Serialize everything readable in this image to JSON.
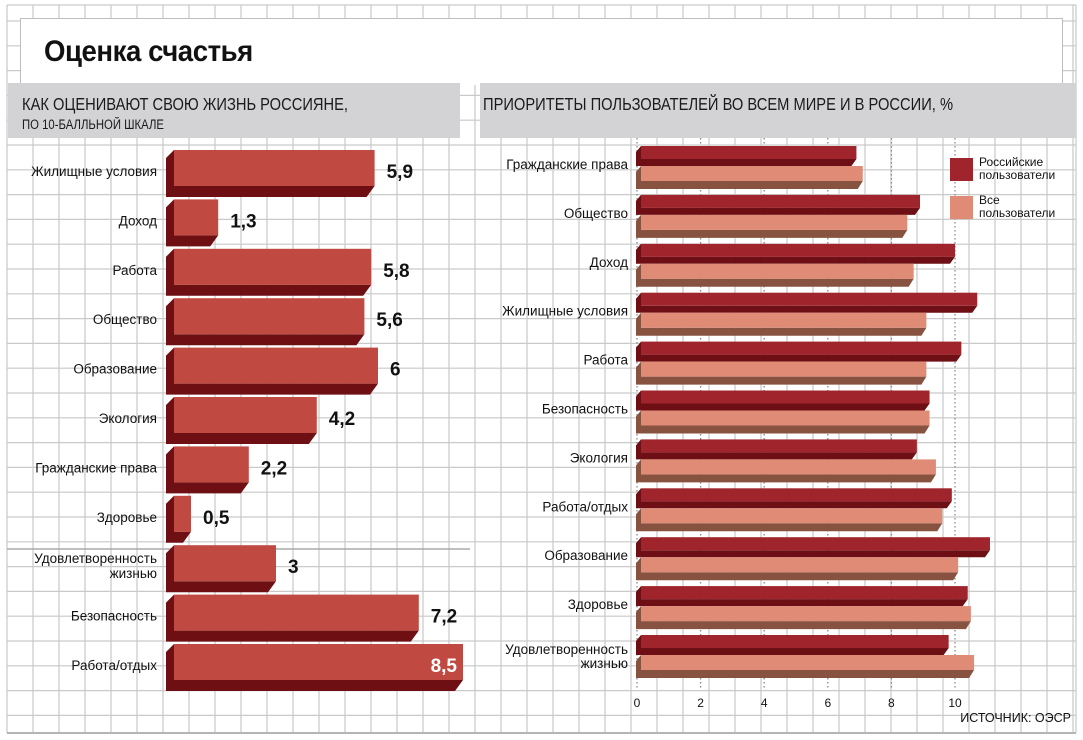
{
  "page": {
    "title": "Оценка счастья",
    "source": "ИСТОЧНИК: ОЭСР"
  },
  "colors": {
    "left_bar_front": "#c04a41",
    "left_bar_shadow": "#6e0f14",
    "russian_front": "#a0242b",
    "russian_shadow": "#6d0f14",
    "all_front": "#e08b76",
    "all_shadow": "#87523f",
    "header_bg": "#d3d3d5",
    "grid": "#c9c9c9"
  },
  "chart_data": [
    {
      "type": "bar",
      "orientation": "horizontal",
      "title": "КАК ОЦЕНИВАЮТ СВОЮ ЖИЗНЬ РОССИЯНЕ,",
      "subtitle": "ПО 10-БАЛЛЬНОЙ ШКАЛЕ",
      "xlabel": "",
      "ylabel": "",
      "xlim": [
        0,
        10
      ],
      "categories": [
        "Жилищные условия",
        "Доход",
        "Работа",
        "Общество",
        "Образование",
        "Экология",
        "Гражданские права",
        "Здоровье",
        "Удовлетворенность жизнью",
        "Безопасность",
        "Работа/отдых"
      ],
      "values": [
        5.9,
        1.3,
        5.8,
        5.6,
        6,
        4.2,
        2.2,
        0.5,
        3,
        7.2,
        8.5
      ],
      "value_labels": [
        "5,9",
        "1,3",
        "5,8",
        "5,6",
        "6",
        "4,2",
        "2,2",
        "0,5",
        "3",
        "7,2",
        "8,5"
      ],
      "grid": true
    },
    {
      "type": "bar",
      "orientation": "horizontal",
      "title": "ПРИОРИТЕТЫ  ПОЛЬЗОВАТЕЛЕЙ ВО ВСЕМ МИРЕ И В РОССИИ, %",
      "xlabel": "",
      "ylabel": "",
      "xlim": [
        0,
        11
      ],
      "xticks": [
        0,
        2,
        4,
        6,
        8,
        10
      ],
      "xtick_labels": [
        "0",
        "2",
        "4",
        "6",
        "8",
        "10"
      ],
      "categories": [
        "Гражданские права",
        "Общество",
        "Доход",
        "Жилищные условия",
        "Работа",
        "Безопасность",
        "Экология",
        "Работа/отдых",
        "Образование",
        "Здоровье",
        "Удовлетворенность жизнью"
      ],
      "series": [
        {
          "name": "Российские пользователи",
          "legend_lines": [
            "Российские",
            "пользователи"
          ],
          "values": [
            6.9,
            8.9,
            10.0,
            10.7,
            10.2,
            9.2,
            8.8,
            9.9,
            11.1,
            10.4,
            9.8
          ]
        },
        {
          "name": "Все пользователи",
          "legend_lines": [
            "Все",
            "пользователи"
          ],
          "values": [
            7.1,
            8.5,
            8.7,
            9.1,
            9.1,
            9.2,
            9.4,
            9.6,
            10.1,
            10.5,
            10.6
          ]
        }
      ],
      "legend_position": "top-right",
      "grid": true
    }
  ]
}
